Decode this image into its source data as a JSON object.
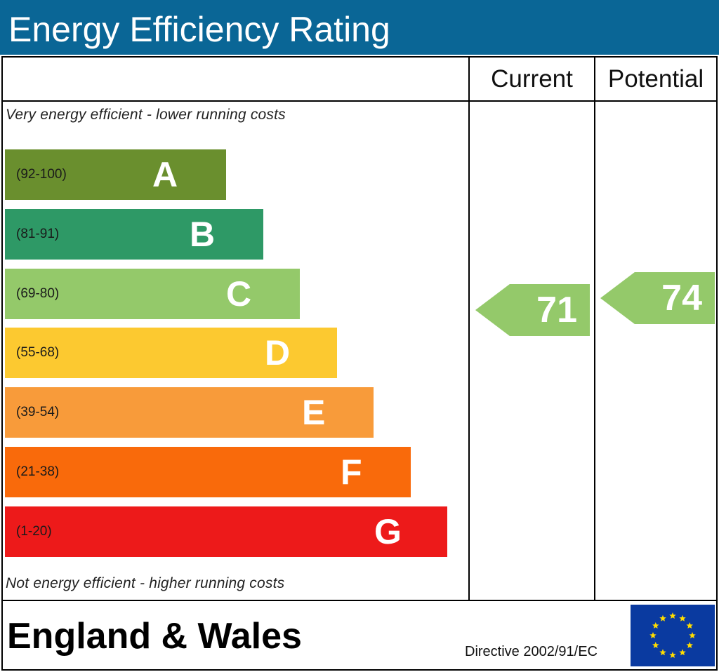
{
  "header": {
    "title": "Energy Efficiency Rating"
  },
  "columns": {
    "current": "Current",
    "potential": "Potential"
  },
  "notes": {
    "top": "Very energy efficient - lower running costs",
    "bottom": "Not energy efficient - higher running costs"
  },
  "footer": {
    "region": "England & Wales",
    "directive": "Directive 2002/91/EC",
    "flag_icon": "eu-flag-icon"
  },
  "chart_data": {
    "type": "bar",
    "title": "Energy Efficiency Rating",
    "bands": [
      {
        "letter": "A",
        "range": "(92-100)",
        "color": "#6a8f2e"
      },
      {
        "letter": "B",
        "range": "(81-91)",
        "color": "#2e9966"
      },
      {
        "letter": "C",
        "range": "(69-80)",
        "color": "#94c96a"
      },
      {
        "letter": "D",
        "range": "(55-68)",
        "color": "#fcc930"
      },
      {
        "letter": "E",
        "range": "(39-54)",
        "color": "#f89b3a"
      },
      {
        "letter": "F",
        "range": "(21-38)",
        "color": "#f96a0b"
      },
      {
        "letter": "G",
        "range": "(1-20)",
        "color": "#ed1a1a"
      }
    ],
    "current": {
      "value": 71,
      "band": "C",
      "color": "#94c96a"
    },
    "potential": {
      "value": 74,
      "band": "C",
      "color": "#94c96a"
    }
  }
}
